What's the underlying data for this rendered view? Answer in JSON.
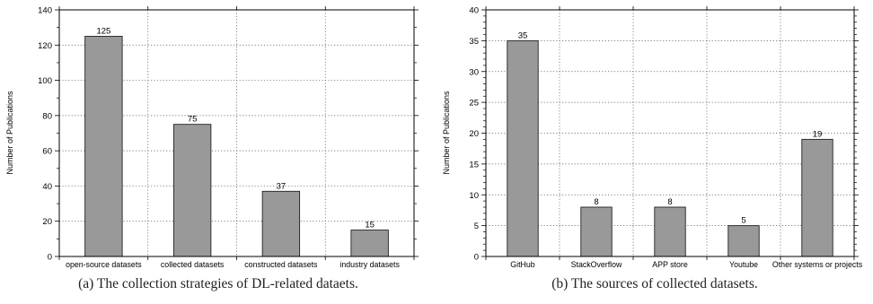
{
  "chart_data": [
    {
      "type": "bar",
      "categories": [
        "open-source datasets",
        "collected datasets",
        "constructed datasets",
        "industry datasets"
      ],
      "values": [
        125,
        75,
        37,
        15
      ],
      "data_labels": [
        "125",
        "75",
        "37",
        "15"
      ],
      "ylabel": "Number of Publications",
      "ylim": [
        0,
        140
      ],
      "yticks": [
        "0",
        "20",
        "40",
        "60",
        "80",
        "100",
        "120",
        "140"
      ],
      "grid": true,
      "bar_color": "#999999",
      "caption": "(a)  The collection strategies of DL-related dataets."
    },
    {
      "type": "bar",
      "categories": [
        "GitHub",
        "StackOverflow",
        "APP store",
        "Youtube",
        "Other systems or projects"
      ],
      "values": [
        35,
        8,
        8,
        5,
        19
      ],
      "data_labels": [
        "35",
        "8",
        "8",
        "5",
        "19"
      ],
      "ylabel": "Number of Publications",
      "ylim": [
        0,
        40
      ],
      "yticks": [
        "0",
        "5",
        "10",
        "15",
        "20",
        "25",
        "30",
        "35",
        "40"
      ],
      "grid": true,
      "bar_color": "#999999",
      "caption": "(b)  The sources of collected datasets."
    }
  ]
}
